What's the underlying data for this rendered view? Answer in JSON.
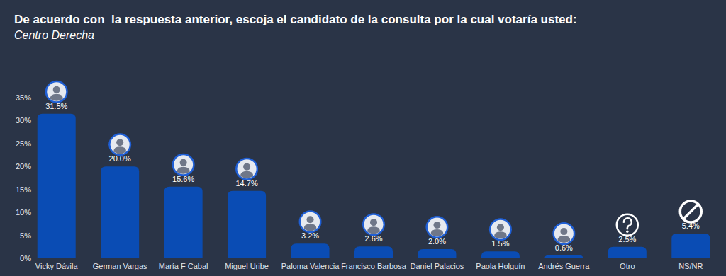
{
  "chart_data": {
    "type": "bar",
    "title": "De acuerdo con  la respuesta anterior, escoja el candidato de la consulta por la cual votaría usted:",
    "subtitle": "Centro Derecha",
    "categories": [
      "Vicky Dávila",
      "German Vargas",
      "María F Cabal",
      "Miguel Uribe",
      "Paloma Valencia",
      "Francisco Barbosa",
      "Daniel Palacios",
      "Paola Holguín",
      "Andrés Guerra",
      "Otro",
      "NS/NR"
    ],
    "values": [
      31.5,
      20.0,
      15.6,
      14.7,
      3.2,
      2.6,
      2.0,
      1.5,
      0.6,
      2.5,
      5.4
    ],
    "value_labels": [
      "31.5%",
      "20.0%",
      "15.6%",
      "14.7%",
      "3.2%",
      "2.6%",
      "2.0%",
      "1.5%",
      "0.6%",
      "2.5%",
      "5.4%"
    ],
    "color": "#0a4cb4",
    "ylim": [
      0,
      35
    ],
    "yticks": [
      {
        "value": 0,
        "label": "0%"
      },
      {
        "value": 5,
        "label": "5%"
      },
      {
        "value": 10,
        "label": "10%"
      },
      {
        "value": 15,
        "label": "15%"
      },
      {
        "value": 20,
        "label": "20%"
      },
      {
        "value": 25,
        "label": "25%"
      },
      {
        "value": 30,
        "label": "30%"
      },
      {
        "value": 35,
        "label": "35%"
      }
    ],
    "grid": false,
    "data_labels": true
  }
}
